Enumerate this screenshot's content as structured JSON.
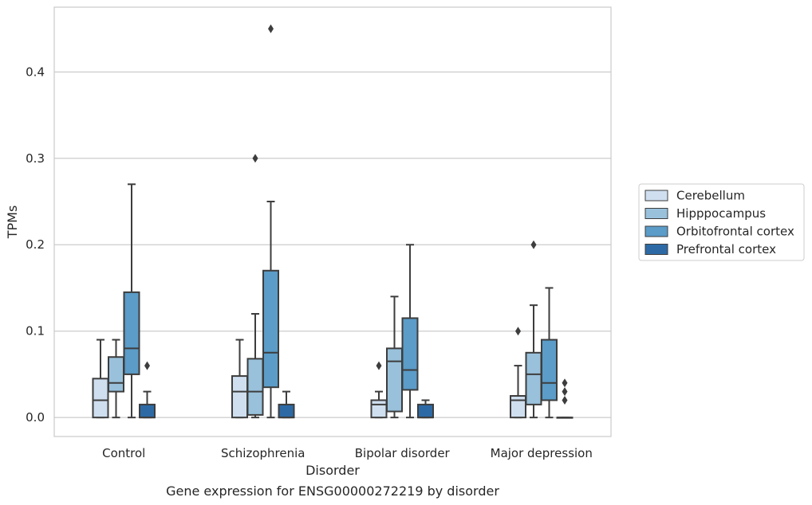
{
  "caption": "Gene expression for ENSG00000272219 by disorder",
  "chart_data": {
    "type": "box",
    "xlabel": "Disorder",
    "ylabel": "TPMs",
    "ylim": [
      -0.022,
      0.475
    ],
    "yticks": [
      0.0,
      0.1,
      0.2,
      0.3,
      0.4
    ],
    "ytick_labels": [
      "0.0",
      "0.1",
      "0.2",
      "0.3",
      "0.4"
    ],
    "grid": "horizontal",
    "legend_position": "right",
    "categories": [
      "Control",
      "Schizophrenia",
      "Bipolar disorder",
      "Major depression"
    ],
    "series": [
      {
        "name": "Cerebellum",
        "color": "#cfdff0",
        "boxes": [
          {
            "whislo": 0.0,
            "q1": 0.0,
            "med": 0.02,
            "q3": 0.045,
            "whishi": 0.09,
            "fliers": []
          },
          {
            "whislo": 0.0,
            "q1": 0.0,
            "med": 0.03,
            "q3": 0.048,
            "whishi": 0.09,
            "fliers": []
          },
          {
            "whislo": 0.0,
            "q1": 0.0,
            "med": 0.015,
            "q3": 0.02,
            "whishi": 0.03,
            "fliers": [
              0.06
            ]
          },
          {
            "whislo": 0.0,
            "q1": 0.0,
            "med": 0.02,
            "q3": 0.025,
            "whishi": 0.06,
            "fliers": [
              0.1
            ]
          }
        ]
      },
      {
        "name": "Hipppocampus",
        "color": "#99c1db",
        "boxes": [
          {
            "whislo": 0.0,
            "q1": 0.03,
            "med": 0.04,
            "q3": 0.07,
            "whishi": 0.09,
            "fliers": []
          },
          {
            "whislo": 0.0,
            "q1": 0.003,
            "med": 0.03,
            "q3": 0.068,
            "whishi": 0.12,
            "fliers": [
              0.3
            ]
          },
          {
            "whislo": 0.0,
            "q1": 0.007,
            "med": 0.065,
            "q3": 0.08,
            "whishi": 0.14,
            "fliers": []
          },
          {
            "whislo": 0.0,
            "q1": 0.015,
            "med": 0.05,
            "q3": 0.075,
            "whishi": 0.13,
            "fliers": [
              0.2
            ]
          }
        ]
      },
      {
        "name": "Orbitofrontal cortex",
        "color": "#5b9cc8",
        "boxes": [
          {
            "whislo": 0.0,
            "q1": 0.05,
            "med": 0.08,
            "q3": 0.145,
            "whishi": 0.27,
            "fliers": []
          },
          {
            "whislo": 0.0,
            "q1": 0.035,
            "med": 0.075,
            "q3": 0.17,
            "whishi": 0.25,
            "fliers": [
              0.45
            ]
          },
          {
            "whislo": 0.0,
            "q1": 0.032,
            "med": 0.055,
            "q3": 0.115,
            "whishi": 0.2,
            "fliers": []
          },
          {
            "whislo": 0.0,
            "q1": 0.02,
            "med": 0.04,
            "q3": 0.09,
            "whishi": 0.15,
            "fliers": []
          }
        ]
      },
      {
        "name": "Prefrontal cortex",
        "color": "#2d6aa5",
        "boxes": [
          {
            "whislo": 0.0,
            "q1": 0.0,
            "med": 0.0,
            "q3": 0.015,
            "whishi": 0.03,
            "fliers": [
              0.06
            ]
          },
          {
            "whislo": 0.0,
            "q1": 0.0,
            "med": 0.0,
            "q3": 0.015,
            "whishi": 0.03,
            "fliers": []
          },
          {
            "whislo": 0.0,
            "q1": 0.0,
            "med": 0.0,
            "q3": 0.015,
            "whishi": 0.02,
            "fliers": []
          },
          {
            "whislo": 0.0,
            "q1": 0.0,
            "med": 0.0,
            "q3": 0.0,
            "whishi": 0.0,
            "fliers": [
              0.02,
              0.03,
              0.04
            ]
          }
        ]
      }
    ]
  }
}
